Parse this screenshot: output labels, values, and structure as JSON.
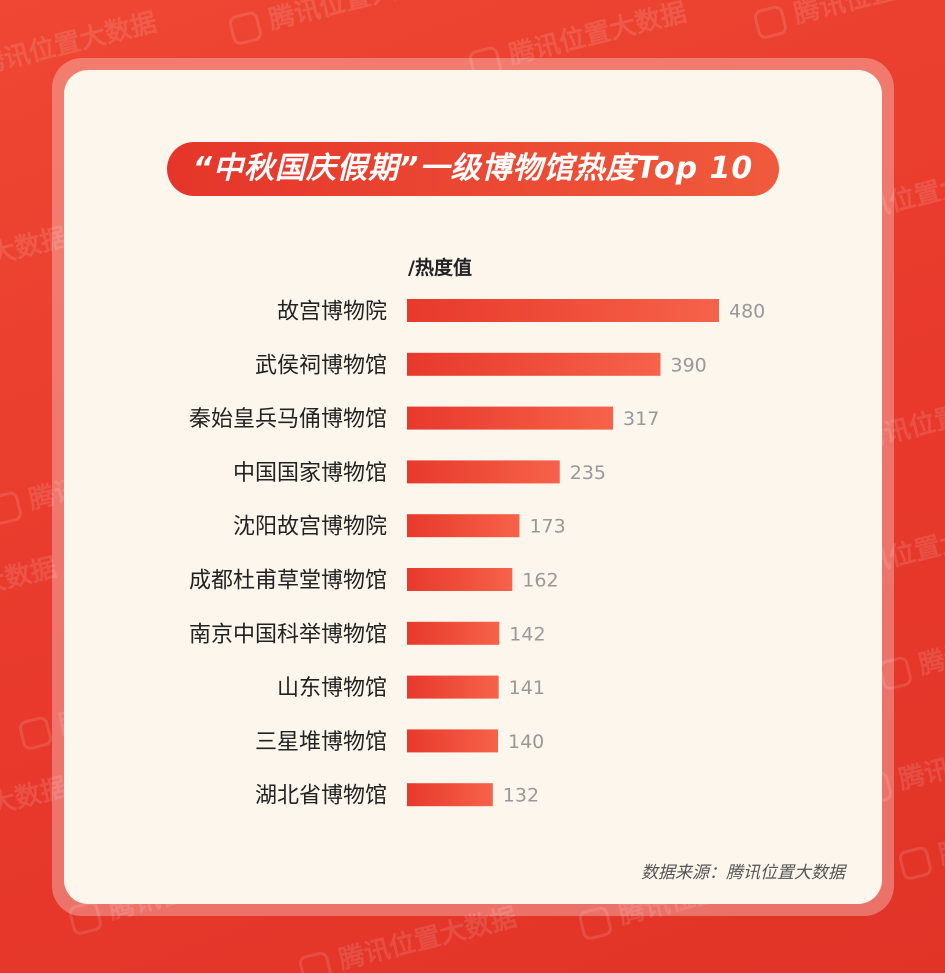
{
  "watermark": {
    "text": "腾讯位置大数据"
  },
  "chart_data": {
    "type": "bar",
    "orientation": "horizontal",
    "title": "“中秋国庆假期”一级博物馆热度Top 10",
    "unit_label": "/热度值",
    "categories": [
      "故宫博物院",
      "武侯祠博物馆",
      "秦始皇兵马俑博物馆",
      "中国国家博物馆",
      "沈阳故宫博物院",
      "成都杜甫草堂博物馆",
      "南京中国科举博物馆",
      "山东博物馆",
      "三星堆博物馆",
      "湖北省博物馆"
    ],
    "values": [
      480,
      390,
      317,
      235,
      173,
      162,
      142,
      141,
      140,
      132
    ],
    "xlim": [
      0,
      480
    ],
    "grid": false,
    "legend": "none",
    "colors": {
      "bar_start": "#e8392c",
      "bar_end": "#f6624a",
      "value_label": "#999999",
      "category_label": "#222222"
    }
  },
  "footer": {
    "source": "数据来源：腾讯位置大数据"
  },
  "colors": {
    "background": "#e8392c",
    "card": "#fdf6ec",
    "title_pill": "#e5352a"
  }
}
